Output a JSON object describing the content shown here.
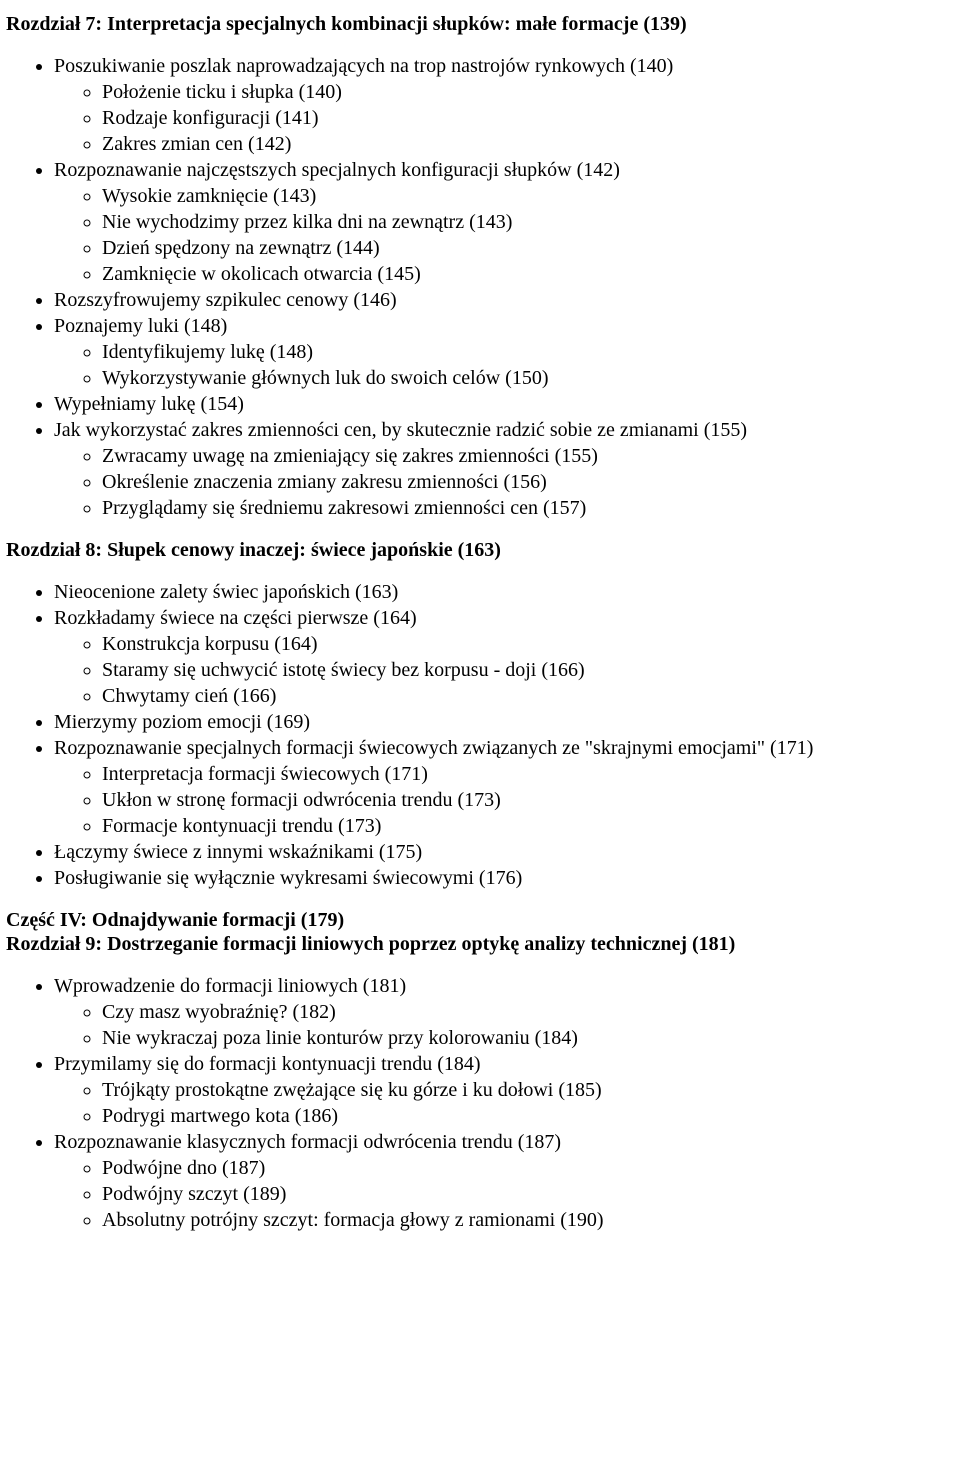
{
  "sections": [
    {
      "headings": [
        "Rozdział 7: Interpretacja specjalnych kombinacji słupków: małe formacje (139)"
      ],
      "items": [
        {
          "text": "Poszukiwanie poszlak naprowadzających na trop nastrojów rynkowych (140)",
          "sub": [
            "Położenie ticku i słupka (140)",
            "Rodzaje konfiguracji (141)",
            "Zakres zmian cen (142)"
          ]
        },
        {
          "text": "Rozpoznawanie najczęstszych specjalnych konfiguracji słupków (142)",
          "sub": [
            "Wysokie zamknięcie (143)",
            "Nie wychodzimy przez kilka dni na zewnątrz (143)",
            "Dzień spędzony na zewnątrz (144)",
            "Zamknięcie w okolicach otwarcia (145)"
          ]
        },
        {
          "text": "Rozszyfrowujemy szpikulec cenowy (146)"
        },
        {
          "text": "Poznajemy luki (148)",
          "sub": [
            "Identyfikujemy lukę (148)",
            "Wykorzystywanie głównych luk do swoich celów (150)"
          ]
        },
        {
          "text": "Wypełniamy lukę (154)"
        },
        {
          "text": "Jak wykorzystać zakres zmienności cen, by skutecznie radzić sobie ze zmianami (155)",
          "sub": [
            "Zwracamy uwagę na zmieniający się zakres zmienności (155)",
            "Określenie znaczenia zmiany zakresu zmienności (156)",
            "Przyglądamy się średniemu zakresowi zmienności cen (157)"
          ]
        }
      ]
    },
    {
      "headings": [
        "Rozdział 8: Słupek cenowy inaczej: świece japońskie (163)"
      ],
      "items": [
        {
          "text": "Nieocenione zalety świec japońskich (163)"
        },
        {
          "text": "Rozkładamy świece na części pierwsze (164)",
          "sub": [
            "Konstrukcja korpusu (164)",
            "Staramy się uchwycić istotę świecy bez korpusu - doji (166)",
            "Chwytamy cień (166)"
          ]
        },
        {
          "text": "Mierzymy poziom emocji (169)"
        },
        {
          "text": "Rozpoznawanie specjalnych formacji świecowych związanych ze \"skrajnymi emocjami\" (171)",
          "sub": [
            "Interpretacja formacji świecowych (171)",
            "Ukłon w stronę formacji odwrócenia trendu (173)",
            "Formacje kontynuacji trendu (173)"
          ]
        },
        {
          "text": "Łączymy świece z innymi wskaźnikami (175)"
        },
        {
          "text": "Posługiwanie się wyłącznie wykresami świecowymi (176)"
        }
      ]
    },
    {
      "headings": [
        "Część IV: Odnajdywanie formacji (179)",
        "Rozdział 9: Dostrzeganie formacji liniowych poprzez optykę analizy technicznej (181)"
      ],
      "items": [
        {
          "text": "Wprowadzenie do formacji liniowych (181)",
          "sub": [
            "Czy masz wyobraźnię? (182)",
            "Nie wykraczaj poza linie konturów przy kolorowaniu (184)"
          ]
        },
        {
          "text": "Przymilamy się do formacji kontynuacji trendu (184)",
          "sub": [
            "Trójkąty prostokątne zwężające się ku górze i ku dołowi (185)",
            "Podrygi martwego kota (186)"
          ]
        },
        {
          "text": "Rozpoznawanie klasycznych formacji odwrócenia trendu (187)",
          "sub": [
            "Podwójne dno (187)",
            "Podwójny szczyt (189)",
            "Absolutny potrójny szczyt: formacja głowy z ramionami (190)"
          ]
        }
      ]
    }
  ]
}
